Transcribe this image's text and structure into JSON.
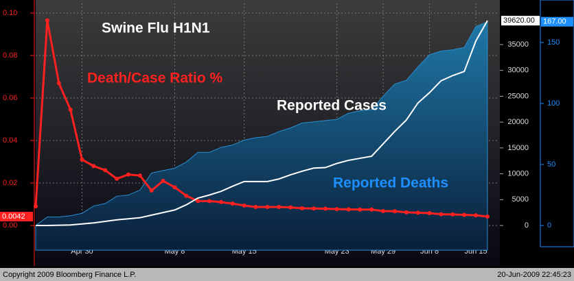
{
  "chart_data": {
    "type": "line",
    "title": "Swine Flu H1N1",
    "source": "Copyright 2009 Bloomberg Finance L.P.",
    "timestamp": "20-Jun-2009 22:45:23",
    "categories": [
      null,
      null,
      null,
      null,
      "Apr 30",
      null,
      null,
      null,
      null,
      null,
      null,
      null,
      "May 8",
      null,
      null,
      null,
      null,
      null,
      "May 15",
      null,
      null,
      null,
      null,
      null,
      null,
      null,
      "May 23",
      null,
      null,
      null,
      "May 29",
      null,
      null,
      null,
      "Jun 8",
      null,
      null,
      null,
      "Jun 15",
      null
    ],
    "ylim": [
      -0.0116,
      0.1045
    ],
    "yticks": [
      {
        "value": 0,
        "label": "0.00"
      },
      {
        "value": 0.02,
        "label": "0.02"
      },
      {
        "value": 0.04,
        "label": "0.04"
      },
      {
        "value": 0.06,
        "label": "0.06"
      },
      {
        "value": 0.08,
        "label": "0.08"
      },
      {
        "value": 0.1,
        "label": "0.10"
      }
    ],
    "y2lim": [
      -4773,
      42954
    ],
    "y2ticks": [
      0,
      5000,
      10000,
      15000,
      20000,
      25000,
      30000,
      35000
    ],
    "y3lim": [
      -20.2,
      182
    ],
    "y3ticks": [
      0,
      50,
      100,
      150
    ],
    "grid": true,
    "series": [
      {
        "name": "Death/Case Ratio %",
        "color": "#ff2020",
        "kind": "line",
        "markers": true,
        "axis": "y",
        "values": [
          0.009,
          0.0965,
          0.067,
          0.0545,
          0.031,
          0.028,
          0.026,
          0.022,
          0.024,
          0.0235,
          0.0165,
          0.021,
          0.018,
          0.014,
          0.0115,
          0.0115,
          0.011,
          0.0103,
          0.0094,
          0.0087,
          0.0087,
          0.0087,
          0.0085,
          0.0081,
          0.008,
          0.0079,
          0.0077,
          0.0076,
          0.0075,
          0.0075,
          0.0068,
          0.0067,
          0.0062,
          0.006,
          0.0058,
          0.0053,
          0.0052,
          0.005,
          0.0048,
          0.0042
        ],
        "value_labels": [
          null,
          null,
          null,
          null,
          null,
          null,
          null,
          null,
          null,
          null,
          null,
          null,
          null,
          null,
          null,
          null,
          null,
          null,
          null,
          null,
          null,
          null,
          null,
          null,
          null,
          null,
          null,
          null,
          null,
          null,
          null,
          null,
          null,
          null,
          null,
          null,
          null,
          null,
          null,
          "0.0042"
        ]
      },
      {
        "name": "Reported Cases",
        "color": "#ffffff",
        "kind": "line",
        "markers": false,
        "axis": "y2",
        "values": [
          0,
          0,
          50,
          100,
          300,
          500,
          800,
          1100,
          1300,
          1500,
          2000,
          2500,
          3000,
          4000,
          5300,
          5900,
          6600,
          7600,
          8500,
          8500,
          8500,
          9000,
          9800,
          10500,
          11100,
          11200,
          12000,
          12600,
          13000,
          13400,
          15800,
          18200,
          20400,
          23700,
          25700,
          28000,
          29000,
          29800,
          35700,
          39620
        ],
        "value_labels": [
          null,
          null,
          null,
          null,
          null,
          null,
          null,
          null,
          null,
          null,
          null,
          null,
          null,
          null,
          null,
          null,
          null,
          null,
          null,
          null,
          null,
          null,
          null,
          null,
          null,
          null,
          null,
          null,
          null,
          null,
          null,
          null,
          null,
          null,
          null,
          null,
          null,
          null,
          null,
          "39620.00"
        ]
      },
      {
        "name": "Reported Deaths",
        "color": "#1e8fff",
        "kind": "area",
        "markers": false,
        "axis": "y3",
        "values": [
          0,
          7,
          7,
          8,
          10,
          16,
          18,
          24,
          25,
          29,
          43,
          45,
          47,
          52,
          60,
          60,
          64,
          66,
          70,
          72,
          73,
          77,
          80,
          84,
          85,
          86,
          87,
          92,
          94,
          95,
          106,
          116,
          119,
          130,
          140,
          143,
          144,
          146,
          163,
          167
        ],
        "value_labels": [
          null,
          null,
          null,
          null,
          null,
          null,
          null,
          null,
          null,
          null,
          null,
          null,
          null,
          null,
          null,
          null,
          null,
          null,
          null,
          null,
          null,
          null,
          null,
          null,
          null,
          null,
          null,
          null,
          null,
          null,
          null,
          null,
          null,
          null,
          null,
          null,
          null,
          null,
          null,
          "167.00"
        ]
      }
    ]
  }
}
